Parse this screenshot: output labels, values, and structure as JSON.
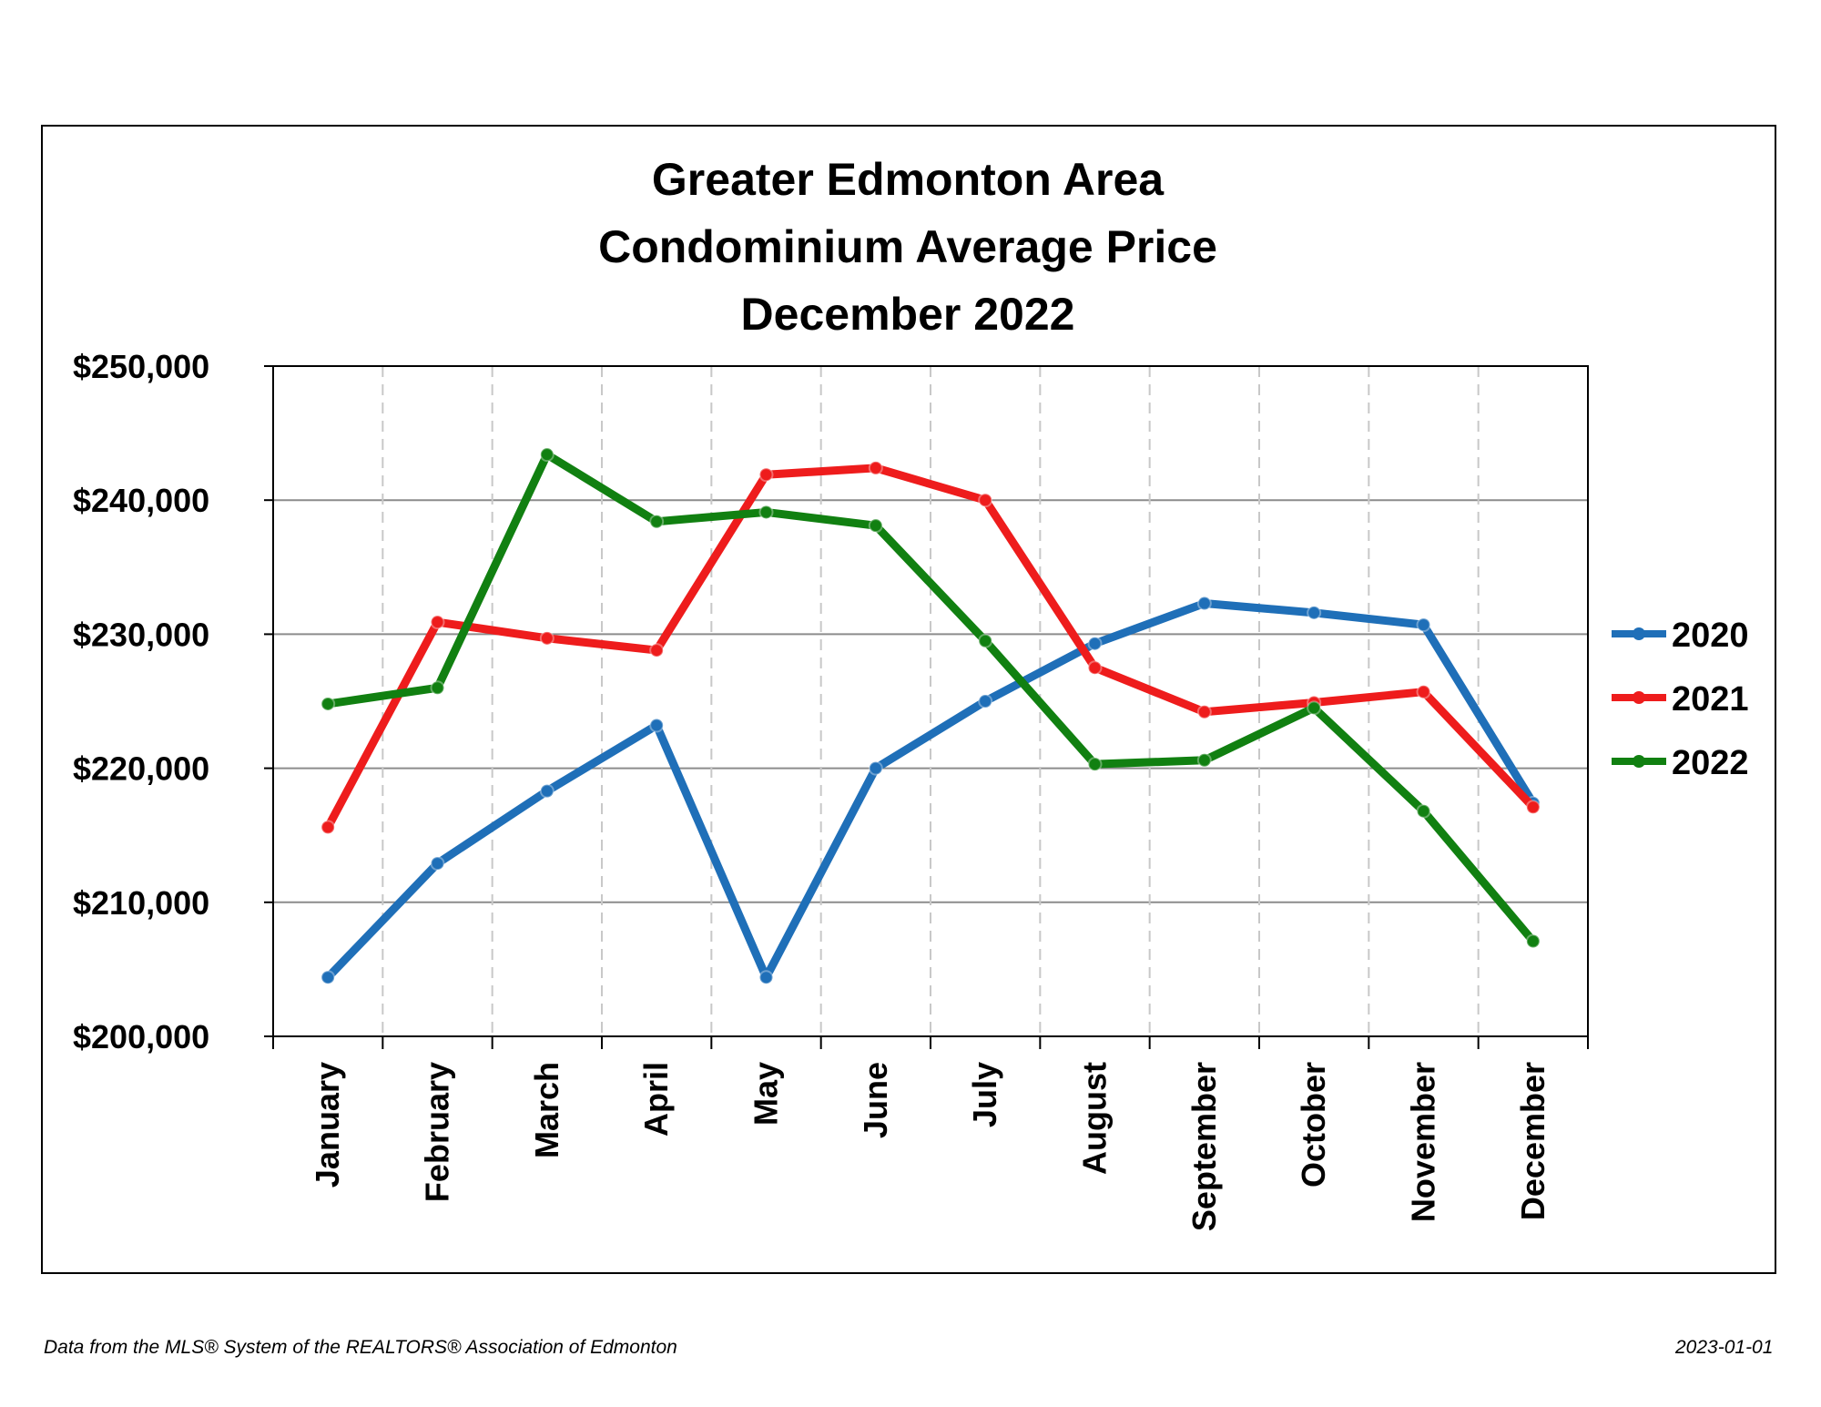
{
  "chart_data": {
    "type": "line",
    "title_lines": [
      "Greater Edmonton Area",
      "Condominium Average Price",
      "December 2022"
    ],
    "categories": [
      "January",
      "February",
      "March",
      "April",
      "May",
      "June",
      "July",
      "August",
      "September",
      "October",
      "November",
      "December"
    ],
    "y_ticks": [
      "$200,000",
      "$210,000",
      "$220,000",
      "$230,000",
      "$240,000",
      "$250,000"
    ],
    "ylim": [
      200000,
      250000
    ],
    "grid": {
      "horizontal": true,
      "vertical_dashed": true
    },
    "legend_position": "right",
    "series": [
      {
        "name": "2020",
        "color": "#1f6fb8",
        "values": [
          204400,
          212900,
          218300,
          223200,
          204400,
          220000,
          225000,
          229300,
          232300,
          231600,
          230700,
          217400
        ]
      },
      {
        "name": "2021",
        "color": "#ee1c1c",
        "values": [
          215600,
          230900,
          229700,
          228800,
          241900,
          242400,
          240000,
          227500,
          224200,
          224900,
          225700,
          217100
        ]
      },
      {
        "name": "2022",
        "color": "#118011",
        "values": [
          224800,
          226000,
          243400,
          238400,
          239100,
          238100,
          229500,
          220300,
          220600,
          224500,
          216800,
          207100
        ]
      }
    ]
  },
  "footer": {
    "source": "Data from the MLS® System of the REALTORS® Association of Edmonton",
    "date": "2023-01-01"
  }
}
